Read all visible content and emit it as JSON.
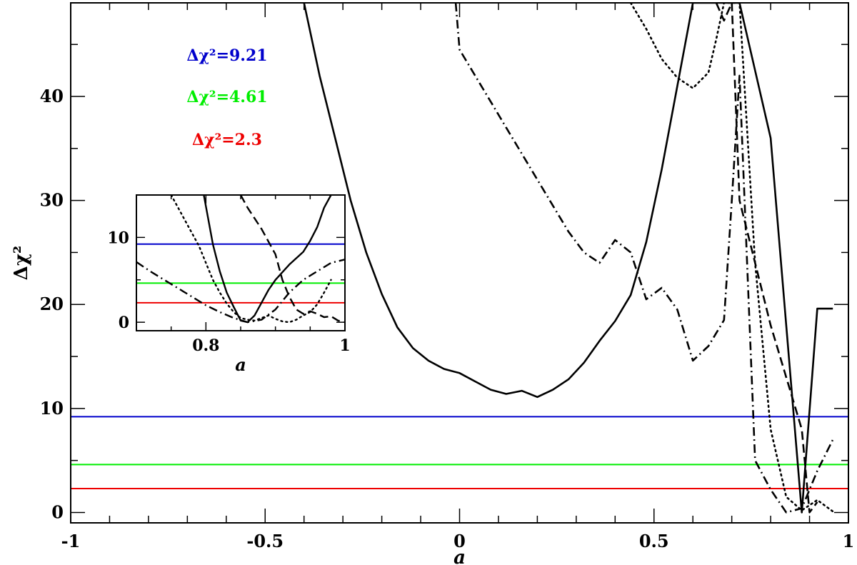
{
  "chart_data": [
    {
      "type": "line",
      "xlabel": "a",
      "ylabel": "Δχ²",
      "xlim": [
        -1,
        1
      ],
      "ylim": [
        -1,
        49
      ],
      "xticks": [
        {
          "v": -1,
          "label": "-1"
        },
        {
          "v": -0.5,
          "label": "-0.5"
        },
        {
          "v": 0,
          "label": "0"
        },
        {
          "v": 0.5,
          "label": "0.5"
        },
        {
          "v": 1,
          "label": "1"
        }
      ],
      "yticks": [
        {
          "v": 0,
          "label": "0"
        },
        {
          "v": 10,
          "label": "10"
        },
        {
          "v": 20,
          "label": "20"
        },
        {
          "v": 30,
          "label": "30"
        },
        {
          "v": 40,
          "label": "40"
        }
      ],
      "grid": false,
      "legend": [
        {
          "label": "Δχ²=9.21",
          "color": "#0000cc"
        },
        {
          "label": "Δχ²=4.61",
          "color": "#00ee00"
        },
        {
          "label": "Δχ²=2.3",
          "color": "#ee0000"
        }
      ],
      "hlines": [
        {
          "y": 9.21,
          "color": "#0000cc"
        },
        {
          "y": 4.61,
          "color": "#00ee00"
        },
        {
          "y": 2.3,
          "color": "#ee0000"
        }
      ],
      "series": [
        {
          "style": "solid",
          "x": [
            -0.4,
            -0.36,
            -0.32,
            -0.28,
            -0.24,
            -0.2,
            -0.16,
            -0.12,
            -0.08,
            -0.04,
            0,
            0.04,
            0.08,
            0.12,
            0.16,
            0.2,
            0.24,
            0.28,
            0.32,
            0.36,
            0.4,
            0.44,
            0.48,
            0.52,
            0.56,
            0.6,
            0.64,
            0.72,
            0.8,
            0.88,
            0.92,
            0.96
          ],
          "y": [
            49,
            42,
            36,
            30,
            25,
            21,
            17.8,
            15.8,
            14.6,
            13.8,
            13.4,
            12.6,
            11.8,
            11.4,
            11.7,
            11.1,
            11.8,
            12.8,
            14.4,
            16.5,
            18.4,
            20.9,
            26,
            33,
            41,
            49,
            49,
            49,
            36,
            0,
            19.6,
            19.6
          ]
        },
        {
          "style": "dashdot",
          "x": [
            -0.01,
            0,
            0.04,
            0.08,
            0.12,
            0.16,
            0.2,
            0.24,
            0.28,
            0.32,
            0.36,
            0.4,
            0.44,
            0.48,
            0.52,
            0.56,
            0.6,
            0.64,
            0.68,
            0.7,
            0.72,
            0.76,
            0.8,
            0.84,
            0.88,
            0.92,
            0.96
          ],
          "y": [
            49,
            44.5,
            42,
            39.5,
            37,
            34.5,
            32,
            29.5,
            27,
            25,
            24,
            26.2,
            25,
            20.5,
            21.6,
            19.5,
            14.6,
            16,
            18.5,
            30,
            42,
            5,
            2.2,
            0,
            0.4,
            4,
            7
          ]
        },
        {
          "style": "dashed",
          "x": [
            0.66,
            0.68,
            0.7,
            0.72,
            0.76,
            0.8,
            0.84,
            0.88,
            0.9,
            0.92
          ],
          "y": [
            49,
            47.3,
            49,
            30,
            24,
            18,
            13,
            8,
            0,
            1
          ]
        },
        {
          "style": "dotted",
          "x": [
            0.44,
            0.48,
            0.52,
            0.56,
            0.6,
            0.64,
            0.66,
            0.68,
            0.7,
            0.72,
            0.76,
            0.8,
            0.84,
            0.88,
            0.92,
            0.96
          ],
          "y": [
            49,
            46.5,
            43.6,
            41.8,
            40.8,
            42.3,
            45.5,
            49,
            49,
            49,
            24,
            8,
            1.5,
            0.2,
            1.2,
            0.1
          ]
        }
      ]
    },
    {
      "type": "line",
      "inset": true,
      "xlabel": "a",
      "ylabel": "",
      "xlim": [
        0.7,
        1
      ],
      "ylim": [
        -1,
        15
      ],
      "xticks": [
        {
          "v": 0.8,
          "label": "0.8"
        },
        {
          "v": 1,
          "label": "1"
        }
      ],
      "yticks": [
        {
          "v": 0,
          "label": "0"
        },
        {
          "v": 10,
          "label": "10"
        }
      ],
      "hlines": [
        {
          "y": 9.21,
          "color": "#0000cc"
        },
        {
          "y": 4.61,
          "color": "#00ee00"
        },
        {
          "y": 2.3,
          "color": "#ee0000"
        }
      ],
      "series": [
        {
          "style": "solid",
          "x": [
            0.797,
            0.81,
            0.82,
            0.83,
            0.84,
            0.85,
            0.86,
            0.87,
            0.88,
            0.89,
            0.9,
            0.92,
            0.94,
            0.95,
            0.96,
            0.97,
            0.98
          ],
          "y": [
            15,
            9.2,
            6,
            3.5,
            1.8,
            0.2,
            0,
            0.8,
            2.3,
            3.8,
            5,
            6.8,
            8.3,
            9.6,
            11.2,
            13.5,
            15
          ]
        },
        {
          "style": "dashed",
          "x": [
            0.85,
            0.86,
            0.88,
            0.9,
            0.91,
            0.92,
            0.93,
            0.94,
            0.95,
            0.96,
            0.97,
            0.98,
            0.99,
            1
          ],
          "y": [
            15,
            13.5,
            11,
            8,
            5,
            3,
            1.5,
            1,
            1.3,
            1,
            0.6,
            0.7,
            0.2,
            0
          ]
        },
        {
          "style": "dotted",
          "x": [
            0.75,
            0.77,
            0.79,
            0.8,
            0.81,
            0.82,
            0.83,
            0.84,
            0.85,
            0.86,
            0.87,
            0.88,
            0.89,
            0.9,
            0.91,
            0.92,
            0.93,
            0.94,
            0.95,
            0.96,
            0.97,
            0.98
          ],
          "y": [
            15,
            12,
            9,
            7,
            5,
            3.5,
            2.2,
            1.2,
            0.5,
            0.3,
            0.2,
            0.5,
            0.8,
            0.4,
            0.1,
            0,
            0.3,
            0.8,
            1.2,
            2.1,
            3.5,
            5
          ]
        },
        {
          "style": "dashdot",
          "x": [
            0.7,
            0.72,
            0.74,
            0.76,
            0.78,
            0.8,
            0.82,
            0.84,
            0.86,
            0.88,
            0.9,
            0.92,
            0.94,
            0.96,
            0.98,
            1
          ],
          "y": [
            7.1,
            6,
            5,
            4,
            3,
            2,
            1.2,
            0.5,
            0,
            0.3,
            1.5,
            3.5,
            5,
            6,
            7,
            7.4
          ]
        }
      ]
    }
  ]
}
